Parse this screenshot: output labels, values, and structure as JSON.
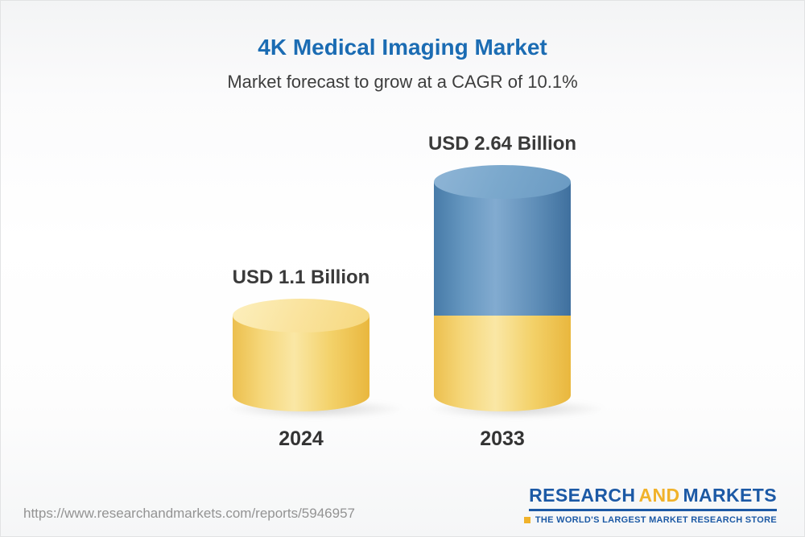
{
  "header": {
    "title": "4K Medical Imaging Market",
    "subtitle": "Market forecast to grow at a CAGR of 10.1%"
  },
  "chart_data": {
    "type": "bar",
    "variant": "3d-cylinder",
    "categories": [
      "2024",
      "2033"
    ],
    "values": [
      1.1,
      2.64
    ],
    "unit": "USD Billion",
    "value_labels": [
      "USD 1.1 Billion",
      "USD 2.64 Billion"
    ],
    "title": "4K Medical Imaging Market",
    "subtitle": "Market forecast to grow at a CAGR of 10.1%",
    "cagr_percent": 10.1,
    "axes_visible": false,
    "legend_position": "none",
    "colors": {
      "bar_2024": "#f5d16b",
      "bar_2033_growth_segment": "#5d8db6",
      "bar_2033_base_segment": "#f5d16b"
    }
  },
  "footer": {
    "report_url": "https://www.researchandmarkets.com/reports/5946957",
    "logo": {
      "word_research": "RESEARCH",
      "word_and": "AND",
      "word_markets": "MARKETS",
      "tagline": "THE WORLD'S LARGEST MARKET RESEARCH STORE"
    }
  },
  "colors": {
    "title_blue": "#1b6cb3",
    "text_dark": "#3a3a3a",
    "logo_blue": "#1c59a5",
    "logo_yellow": "#f0b22b",
    "url_gray": "#939393"
  }
}
